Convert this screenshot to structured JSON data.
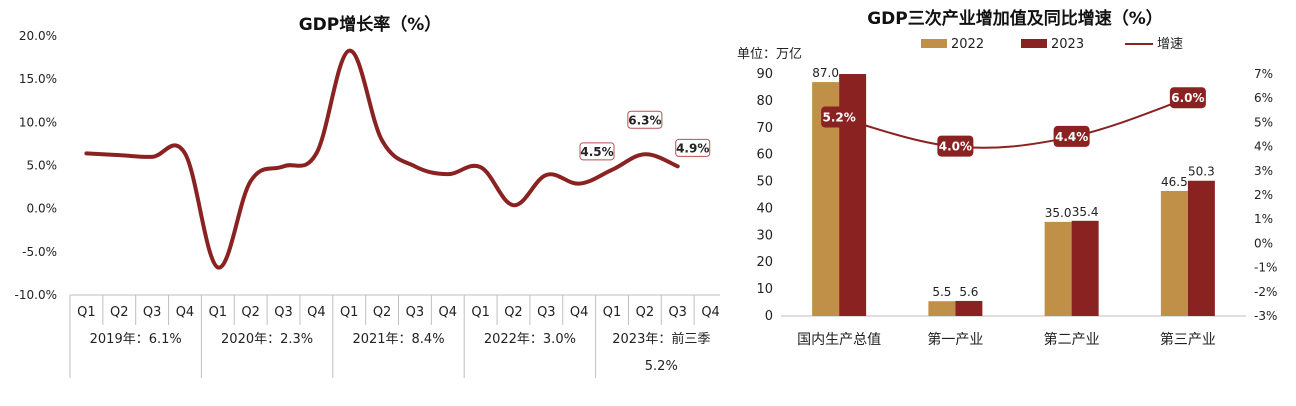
{
  "chart_data": [
    {
      "type": "line",
      "title": "GDP增长率（%）",
      "x": [
        "Q1",
        "Q2",
        "Q3",
        "Q4",
        "Q1",
        "Q2",
        "Q3",
        "Q4",
        "Q1",
        "Q2",
        "Q3",
        "Q4",
        "Q1",
        "Q2",
        "Q3",
        "Q4",
        "Q1",
        "Q2",
        "Q3",
        "Q4"
      ],
      "year_groups": [
        {
          "label": "2019年：6.1%"
        },
        {
          "label": "2020年：2.3%"
        },
        {
          "label": "2021年：8.4%"
        },
        {
          "label": "2022年：3.0%"
        },
        {
          "label": "2023年：前三季",
          "label2": "5.2%"
        }
      ],
      "values": [
        6.4,
        6.2,
        6.0,
        6.4,
        -6.8,
        3.2,
        4.9,
        6.4,
        18.3,
        7.9,
        4.9,
        4.0,
        4.8,
        0.4,
        3.9,
        2.9,
        4.5,
        6.3,
        4.9,
        null
      ],
      "data_labels": [
        {
          "index": 16,
          "text": "4.5%"
        },
        {
          "index": 17,
          "text": "6.3%"
        },
        {
          "index": 18,
          "text": "4.9%"
        }
      ],
      "ylim": [
        -10,
        20
      ],
      "yticks": [
        "-10.0%",
        "-5.0%",
        "0.0%",
        "5.0%",
        "10.0%",
        "15.0%",
        "20.0%"
      ],
      "color": "#8b2222"
    },
    {
      "type": "bar",
      "title": "GDP三次产业增加值及同比增速（%）",
      "unit_label": "单位：万亿",
      "categories": [
        "国内生产总值",
        "第一产业",
        "第二产业",
        "第三产业"
      ],
      "series": [
        {
          "name": "2022",
          "values": [
            87.0,
            5.5,
            35.0,
            46.5
          ],
          "labels": [
            "87.0",
            "5.5",
            "35.0",
            "46.5"
          ],
          "color": "#c19048"
        },
        {
          "name": "2023",
          "values": [
            90.0,
            5.6,
            35.4,
            50.3
          ],
          "labels": [
            "",
            "5.6",
            "35.4",
            "50.3"
          ],
          "color": "#8b2222"
        }
      ],
      "line_series": {
        "name": "增速",
        "values": [
          5.2,
          4.0,
          4.4,
          6.0
        ],
        "labels": [
          "5.2%",
          "4.0%",
          "4.4%",
          "6.0%"
        ],
        "color": "#8b2222"
      },
      "ylim_left": [
        0,
        90
      ],
      "yticks_left": [
        "0",
        "10",
        "20",
        "30",
        "40",
        "50",
        "60",
        "70",
        "80",
        "90"
      ],
      "ylim_right": [
        -3,
        7
      ],
      "yticks_right": [
        "-3%",
        "-2%",
        "-1%",
        "0%",
        "1%",
        "2%",
        "3%",
        "4%",
        "5%",
        "6%",
        "7%"
      ],
      "legend_position": "top"
    }
  ]
}
